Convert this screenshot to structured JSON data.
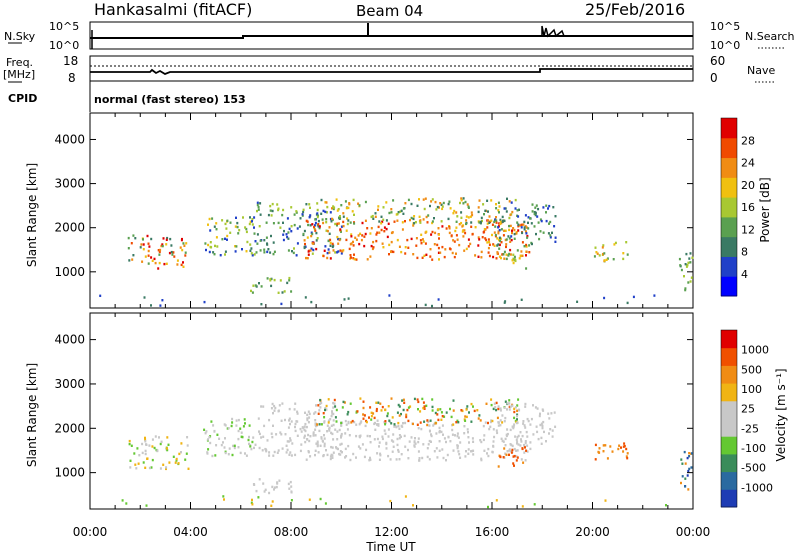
{
  "header": {
    "radar": "Hankasalmi (fitACF)",
    "beam": "Beam 04",
    "date": "25/Feb/2016"
  },
  "top_panels": {
    "nsky_label": "N.Sky",
    "nsky_ticks": [
      "10^5",
      "10^0"
    ],
    "nsearch_label": "N.Search",
    "nsearch_ticks": [
      "10^5",
      "10^0"
    ],
    "freq_label": "Freq.",
    "freq_unit": "[MHz]",
    "freq_ticks": [
      "18",
      "8"
    ],
    "nave_label": "Nave",
    "nave_ticks": [
      "60",
      "0"
    ],
    "cpid_label": "CPID",
    "cpid_text": "normal (fast stereo) 153"
  },
  "chart_data": [
    {
      "type": "heatmap",
      "name": "power",
      "ylabel": "Slant Range [km]",
      "y_ticks": [
        "4000",
        "3000",
        "2000",
        "1000"
      ],
      "ylim": [
        180,
        4600
      ],
      "colorbar_label": "Power [dB]",
      "colorbar_ticks": [
        "28",
        "24",
        "20",
        "16",
        "12",
        "8",
        "4"
      ],
      "colorbar_colors": [
        "#0000ff",
        "#2040c8",
        "#3a7a64",
        "#5aa050",
        "#a8c832",
        "#f0c010",
        "#f08c14",
        "#f04a00",
        "#e00000"
      ]
    },
    {
      "type": "heatmap",
      "name": "velocity",
      "ylabel": "Slant Range [km]",
      "y_ticks": [
        "4000",
        "3000",
        "2000",
        "1000"
      ],
      "ylim": [
        180,
        4600
      ],
      "colorbar_label": "Velocity [m s⁻¹]",
      "colorbar_ticks": [
        "1000",
        "500",
        "100",
        "25",
        "-25",
        "-100",
        "-500",
        "-1000"
      ],
      "colorbar_colors": [
        "#1e3cb4",
        "#2a6aa0",
        "#3a8c5a",
        "#64c832",
        "#c8c8c8",
        "#c8c8c8",
        "#f0b414",
        "#f08c14",
        "#f05000",
        "#e00000"
      ]
    }
  ],
  "x_axis": {
    "ticks": [
      "00:00",
      "04:00",
      "08:00",
      "12:00",
      "16:00",
      "20:00",
      "00:00"
    ],
    "label": "Time UT"
  }
}
